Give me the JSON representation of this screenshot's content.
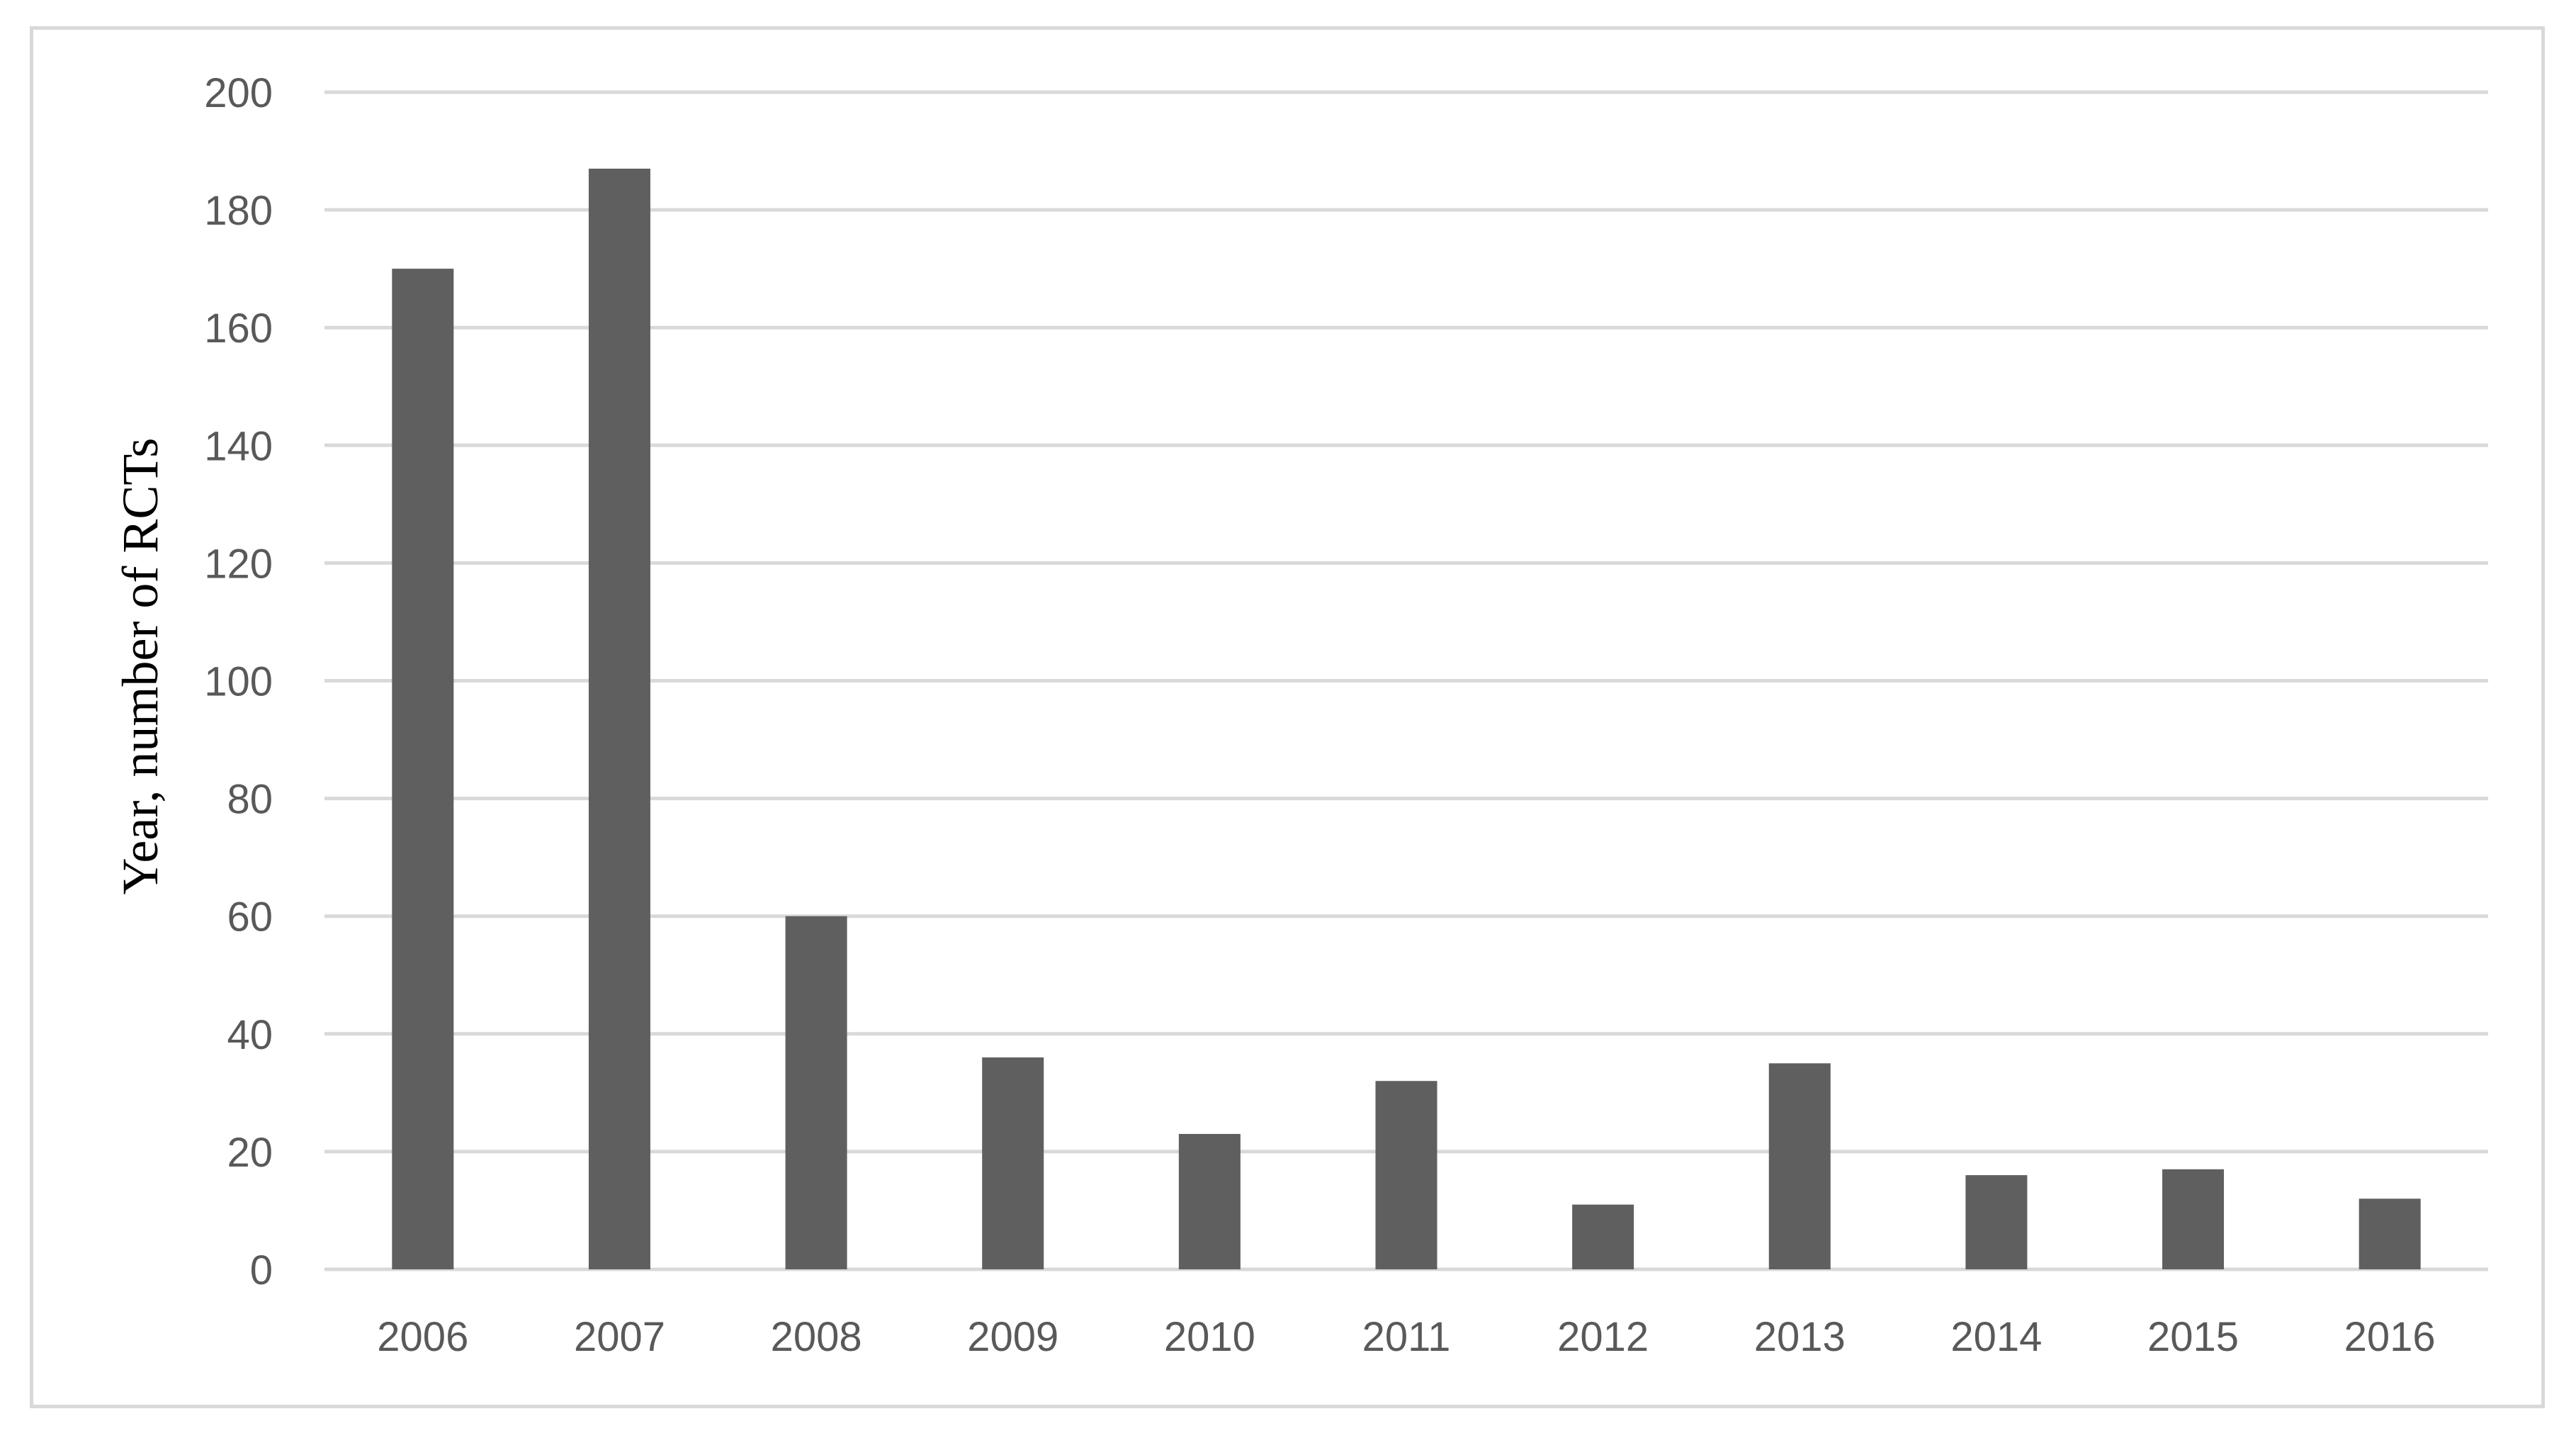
{
  "chart_data": {
    "type": "bar",
    "categories": [
      "2006",
      "2007",
      "2008",
      "2009",
      "2010",
      "2011",
      "2012",
      "2013",
      "2014",
      "2015",
      "2016"
    ],
    "values": [
      170,
      187,
      60,
      36,
      23,
      32,
      11,
      35,
      16,
      17,
      12
    ],
    "ylabel": "Year, number of RCTs",
    "ylim": [
      0,
      200
    ],
    "yticks": [
      "0",
      "20",
      "40",
      "60",
      "80",
      "100",
      "120",
      "140",
      "160",
      "180",
      "200"
    ],
    "grid": true,
    "bar_color": "#5f5f5f",
    "gridline_color": "#d9d9d9"
  }
}
